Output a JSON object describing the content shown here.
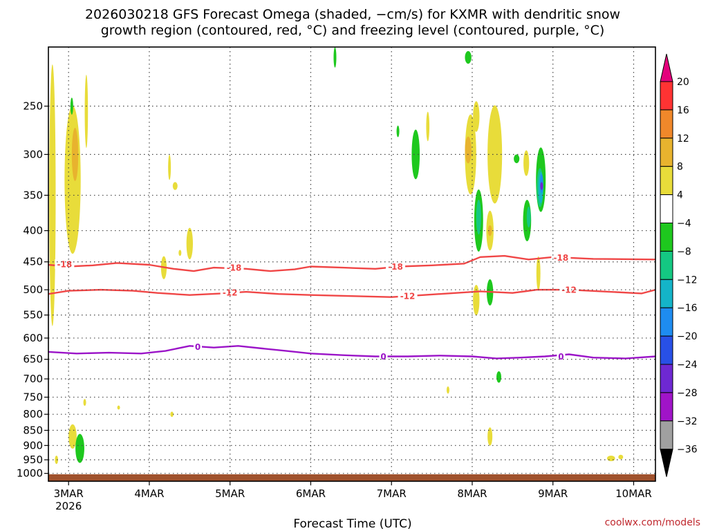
{
  "chart_data": {
    "type": "heatmap",
    "title_lines": [
      "2026030218 GFS Forecast Omega (shaded, −cm/s) for KXMR with dendritic snow",
      "growth region (contoured, red, °C) and freezing level (contoured, purple, °C)"
    ],
    "xlabel": "Forecast Time (UTC)",
    "credit": "coolwx.com/models",
    "x_ticks": [
      {
        "label": "3MAR",
        "sub": "2026",
        "day": 3
      },
      {
        "label": "4MAR",
        "sub": "",
        "day": 4
      },
      {
        "label": "5MAR",
        "sub": "",
        "day": 5
      },
      {
        "label": "6MAR",
        "sub": "",
        "day": 6
      },
      {
        "label": "7MAR",
        "sub": "",
        "day": 7
      },
      {
        "label": "8MAR",
        "sub": "",
        "day": 8
      },
      {
        "label": "9MAR",
        "sub": "",
        "day": 9
      },
      {
        "label": "10MAR",
        "sub": "",
        "day": 10
      }
    ],
    "xlim": [
      2.75,
      10.27
    ],
    "y_ticks": [
      250,
      300,
      350,
      400,
      450,
      500,
      550,
      600,
      650,
      700,
      750,
      800,
      850,
      900,
      950,
      1000
    ],
    "ylim": [
      1030,
      200
    ],
    "y_scale": "log",
    "grid": true,
    "colorbar": {
      "labels": [
        "20",
        "16",
        "12",
        "8",
        "4",
        "−4",
        "−8",
        "−12",
        "−16",
        "−20",
        "−24",
        "−28",
        "−32",
        "−36"
      ],
      "colors": [
        "#e4007c",
        "#ff3333",
        "#f0882a",
        "#e8b32e",
        "#e8dc3a",
        "#ffffff",
        "#1ec81e",
        "#14c882",
        "#14b4c8",
        "#1e8cf0",
        "#2850e6",
        "#6e28d2",
        "#a014c8",
        "#a0a0a0",
        "#000000"
      ]
    },
    "contours": [
      {
        "label": "-18",
        "color": "#f04646",
        "points": [
          [
            2.75,
            455
          ],
          [
            3.0,
            458
          ],
          [
            3.3,
            456
          ],
          [
            3.6,
            452
          ],
          [
            4.0,
            455
          ],
          [
            4.3,
            462
          ],
          [
            4.55,
            466
          ],
          [
            4.8,
            460
          ],
          [
            5.2,
            462
          ],
          [
            5.5,
            466
          ],
          [
            5.8,
            463
          ],
          [
            6.0,
            458
          ],
          [
            6.4,
            460
          ],
          [
            6.8,
            462
          ],
          [
            7.1,
            458
          ],
          [
            7.5,
            456
          ],
          [
            7.9,
            453
          ],
          [
            8.1,
            442
          ],
          [
            8.4,
            440
          ],
          [
            8.7,
            446
          ],
          [
            9.0,
            442
          ],
          [
            9.5,
            445
          ],
          [
            10.27,
            446
          ]
        ]
      },
      {
        "label": "-12",
        "color": "#f04646",
        "points": [
          [
            2.75,
            508
          ],
          [
            3.0,
            502
          ],
          [
            3.4,
            500
          ],
          [
            3.8,
            502
          ],
          [
            4.1,
            506
          ],
          [
            4.5,
            510
          ],
          [
            4.9,
            507
          ],
          [
            5.2,
            504
          ],
          [
            5.6,
            508
          ],
          [
            6.0,
            510
          ],
          [
            6.5,
            512
          ],
          [
            7.0,
            514
          ],
          [
            7.4,
            510
          ],
          [
            7.8,
            506
          ],
          [
            8.1,
            503
          ],
          [
            8.5,
            506
          ],
          [
            8.8,
            500
          ],
          [
            9.2,
            500
          ],
          [
            9.6,
            503
          ],
          [
            10.1,
            507
          ],
          [
            10.27,
            500
          ]
        ]
      },
      {
        "label": "0",
        "color": "#9b14c8",
        "points": [
          [
            2.75,
            632
          ],
          [
            3.1,
            636
          ],
          [
            3.5,
            634
          ],
          [
            3.9,
            636
          ],
          [
            4.2,
            630
          ],
          [
            4.5,
            618
          ],
          [
            4.8,
            622
          ],
          [
            5.1,
            618
          ],
          [
            5.4,
            624
          ],
          [
            5.7,
            630
          ],
          [
            6.0,
            636
          ],
          [
            6.4,
            640
          ],
          [
            6.8,
            643
          ],
          [
            7.2,
            643
          ],
          [
            7.6,
            641
          ],
          [
            8.0,
            643
          ],
          [
            8.3,
            648
          ],
          [
            8.6,
            646
          ],
          [
            8.9,
            643
          ],
          [
            9.2,
            638
          ],
          [
            9.5,
            646
          ],
          [
            9.9,
            648
          ],
          [
            10.27,
            643
          ]
        ]
      }
    ],
    "contour_labels": [
      {
        "text": "-18",
        "x": 2.95,
        "y": 454,
        "color": "#f04646"
      },
      {
        "text": "-18",
        "x": 5.05,
        "y": 460,
        "color": "#f04646"
      },
      {
        "text": "-18",
        "x": 7.05,
        "y": 458,
        "color": "#f04646"
      },
      {
        "text": "-18",
        "x": 9.1,
        "y": 443,
        "color": "#f04646"
      },
      {
        "text": "-12",
        "x": 5.0,
        "y": 505,
        "color": "#f04646"
      },
      {
        "text": "-12",
        "x": 7.2,
        "y": 512,
        "color": "#f04646"
      },
      {
        "text": "-12",
        "x": 9.2,
        "y": 500,
        "color": "#f04646"
      },
      {
        "text": "0",
        "x": 4.6,
        "y": 620,
        "color": "#9b14c8"
      },
      {
        "text": "0",
        "x": 6.9,
        "y": 643,
        "color": "#9b14c8"
      },
      {
        "text": "0",
        "x": 9.1,
        "y": 643,
        "color": "#9b14c8"
      }
    ],
    "omega_blobs": [
      {
        "color": "#e8dc3a",
        "x": 3.05,
        "p": 330,
        "wx": 0.1,
        "wp": 90
      },
      {
        "color": "#e8dc3a",
        "x": 2.8,
        "p": 350,
        "wx": 0.04,
        "wp": 160
      },
      {
        "color": "#e8b32e",
        "x": 3.08,
        "p": 300,
        "wx": 0.04,
        "wp": 30
      },
      {
        "color": "#e8dc3a",
        "x": 3.22,
        "p": 255,
        "wx": 0.02,
        "wp": 35
      },
      {
        "color": "#1ec81e",
        "x": 3.04,
        "p": 250,
        "wx": 0.015,
        "wp": 8
      },
      {
        "color": "#e8dc3a",
        "x": 4.25,
        "p": 315,
        "wx": 0.015,
        "wp": 15
      },
      {
        "color": "#e8dc3a",
        "x": 4.32,
        "p": 338,
        "wx": 0.03,
        "wp": 5
      },
      {
        "color": "#e8dc3a",
        "x": 4.5,
        "p": 420,
        "wx": 0.04,
        "wp": 25
      },
      {
        "color": "#e8dc3a",
        "x": 4.18,
        "p": 460,
        "wx": 0.035,
        "wp": 20
      },
      {
        "color": "#e8dc3a",
        "x": 4.38,
        "p": 435,
        "wx": 0.01,
        "wp": 5
      },
      {
        "color": "#1ec81e",
        "x": 6.3,
        "p": 208,
        "wx": 0.015,
        "wp": 8
      },
      {
        "color": "#1ec81e",
        "x": 7.08,
        "p": 275,
        "wx": 0.008,
        "wp": 6
      },
      {
        "color": "#1ec81e",
        "x": 7.3,
        "p": 300,
        "wx": 0.05,
        "wp": 28
      },
      {
        "color": "#e8dc3a",
        "x": 7.45,
        "p": 270,
        "wx": 0.02,
        "wp": 15
      },
      {
        "color": "#1ec81e",
        "x": 7.95,
        "p": 208,
        "wx": 0.04,
        "wp": 5
      },
      {
        "color": "#e8dc3a",
        "x": 7.98,
        "p": 300,
        "wx": 0.07,
        "wp": 45
      },
      {
        "color": "#e8b32e",
        "x": 7.95,
        "p": 295,
        "wx": 0.04,
        "wp": 15
      },
      {
        "color": "#e8dc3a",
        "x": 8.05,
        "p": 260,
        "wx": 0.04,
        "wp": 15
      },
      {
        "color": "#e8dc3a",
        "x": 8.28,
        "p": 300,
        "wx": 0.09,
        "wp": 55
      },
      {
        "color": "#1ec81e",
        "x": 8.08,
        "p": 385,
        "wx": 0.055,
        "wp": 45
      },
      {
        "color": "#14c882",
        "x": 8.08,
        "p": 380,
        "wx": 0.03,
        "wp": 25
      },
      {
        "color": "#e8dc3a",
        "x": 8.22,
        "p": 400,
        "wx": 0.045,
        "wp": 30
      },
      {
        "color": "#e8b32e",
        "x": 8.22,
        "p": 400,
        "wx": 0.025,
        "wp": 8
      },
      {
        "color": "#1ec81e",
        "x": 8.55,
        "p": 305,
        "wx": 0.035,
        "wp": 5
      },
      {
        "color": "#e8dc3a",
        "x": 8.67,
        "p": 310,
        "wx": 0.035,
        "wp": 15
      },
      {
        "color": "#1ec81e",
        "x": 8.85,
        "p": 330,
        "wx": 0.06,
        "wp": 40
      },
      {
        "color": "#14c882",
        "x": 8.84,
        "p": 340,
        "wx": 0.04,
        "wp": 25
      },
      {
        "color": "#14b4c8",
        "x": 8.85,
        "p": 340,
        "wx": 0.03,
        "wp": 20
      },
      {
        "color": "#1e8cf0",
        "x": 8.86,
        "p": 335,
        "wx": 0.02,
        "wp": 12
      },
      {
        "color": "#6e28d2",
        "x": 8.86,
        "p": 338,
        "wx": 0.01,
        "wp": 5
      },
      {
        "color": "#1ec81e",
        "x": 8.68,
        "p": 385,
        "wx": 0.05,
        "wp": 30
      },
      {
        "color": "#14c882",
        "x": 8.7,
        "p": 380,
        "wx": 0.025,
        "wp": 15
      },
      {
        "color": "#e8dc3a",
        "x": 8.82,
        "p": 470,
        "wx": 0.025,
        "wp": 30
      },
      {
        "color": "#e8dc3a",
        "x": 8.05,
        "p": 520,
        "wx": 0.04,
        "wp": 30
      },
      {
        "color": "#1ec81e",
        "x": 8.22,
        "p": 505,
        "wx": 0.04,
        "wp": 25
      },
      {
        "color": "#e8dc3a",
        "x": 8.22,
        "p": 870,
        "wx": 0.03,
        "wp": 30
      },
      {
        "color": "#1ec81e",
        "x": 8.33,
        "p": 695,
        "wx": 0.03,
        "wp": 15
      },
      {
        "color": "#e8dc3a",
        "x": 7.7,
        "p": 730,
        "wx": 0.005,
        "wp": 10
      },
      {
        "color": "#e8dc3a",
        "x": 3.05,
        "p": 870,
        "wx": 0.05,
        "wp": 40
      },
      {
        "color": "#e8dc3a",
        "x": 2.85,
        "p": 950,
        "wx": 0.02,
        "wp": 15
      },
      {
        "color": "#1ec81e",
        "x": 3.14,
        "p": 910,
        "wx": 0.055,
        "wp": 50
      },
      {
        "color": "#e8dc3a",
        "x": 3.2,
        "p": 765,
        "wx": 0.015,
        "wp": 10
      },
      {
        "color": "#e8dc3a",
        "x": 3.62,
        "p": 780,
        "wx": 0.005,
        "wp": 6
      },
      {
        "color": "#e8dc3a",
        "x": 4.28,
        "p": 800,
        "wx": 0.02,
        "wp": 8
      },
      {
        "color": "#e8dc3a",
        "x": 9.72,
        "p": 945,
        "wx": 0.05,
        "wp": 10
      },
      {
        "color": "#e8dc3a",
        "x": 9.84,
        "p": 940,
        "wx": 0.03,
        "wp": 8
      }
    ],
    "ground_color": "#a0522d"
  }
}
